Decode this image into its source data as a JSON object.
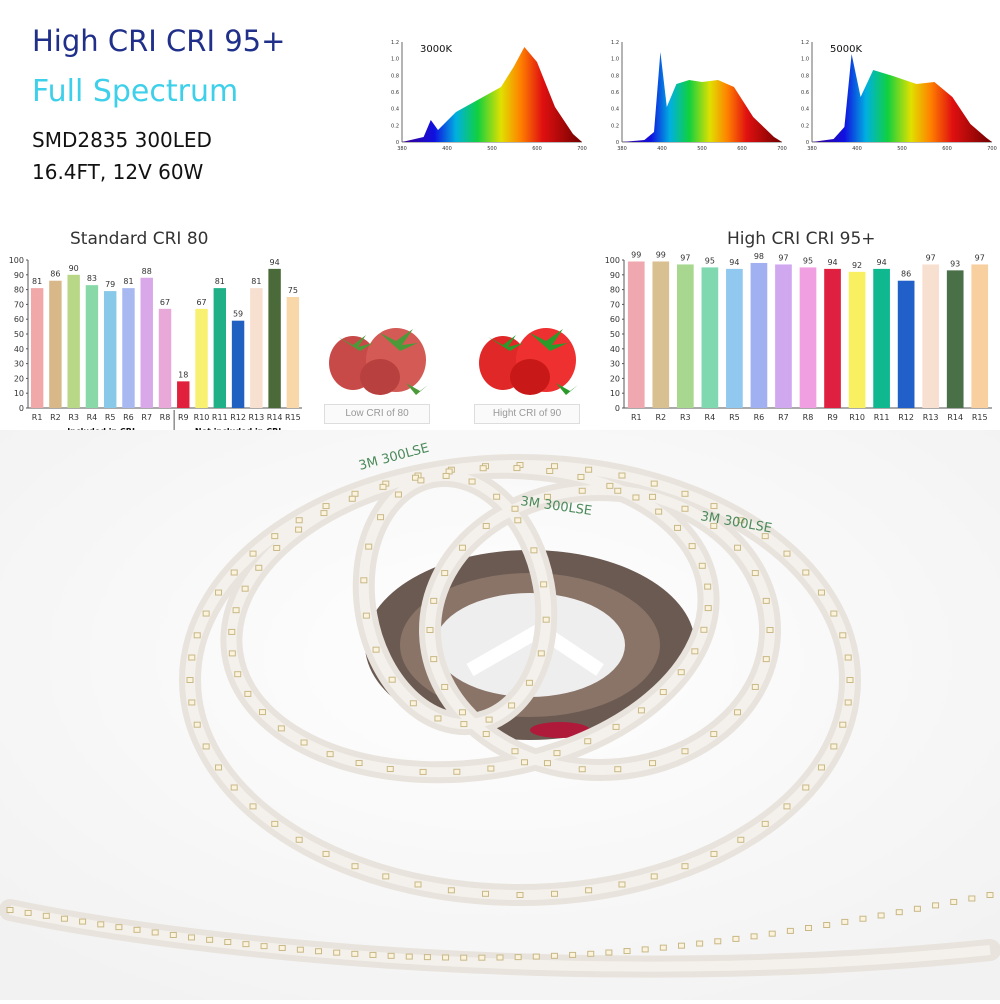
{
  "header": {
    "title": "High CRI CRI 95+",
    "subtitle": "Full Spectrum",
    "spec_line1": "SMD2835 300LED",
    "spec_line2": "16.4FT, 12V 60W"
  },
  "spectra": [
    {
      "label": "3000K",
      "peak": "red",
      "x_ticks": [
        "380",
        "400",
        "500",
        "600",
        "700"
      ],
      "y_ticks": [
        "0",
        "0.2",
        "0.4",
        "0.6",
        "0.8",
        "1.0",
        "1.2"
      ]
    },
    {
      "label": "",
      "peak": "blue",
      "x_ticks": [
        "380",
        "400",
        "500",
        "600",
        "700"
      ],
      "y_ticks": [
        "0",
        "0.2",
        "0.4",
        "0.6",
        "0.8",
        "1.0",
        "1.2"
      ]
    },
    {
      "label": "5000K",
      "peak": "blue",
      "x_ticks": [
        "380",
        "400",
        "500",
        "600",
        "700"
      ],
      "y_ticks": [
        "0",
        "0.2",
        "0.4",
        "0.6",
        "0.8",
        "1.0",
        "1.2"
      ]
    }
  ],
  "chart_data": [
    {
      "type": "bar",
      "title": "Standard CRI 80",
      "categories": [
        "R1",
        "R2",
        "R3",
        "R4",
        "R5",
        "R6",
        "R7",
        "R8",
        "R9",
        "R10",
        "R11",
        "R12",
        "R13",
        "R14",
        "R15"
      ],
      "values": [
        81,
        86,
        90,
        83,
        79,
        81,
        88,
        67,
        18,
        67,
        81,
        59,
        81,
        94,
        75
      ],
      "colors": [
        "#f0a8a8",
        "#d8b888",
        "#b8d888",
        "#88d8a8",
        "#88c8e8",
        "#a8b8f0",
        "#d8a8e8",
        "#e8a8d8",
        "#e0203c",
        "#f8f070",
        "#20b088",
        "#2060c0",
        "#f8e0d0",
        "#4a6a3a",
        "#f8d8a8"
      ],
      "ylim": [
        0,
        100
      ],
      "y_ticks": [
        0,
        10,
        20,
        30,
        40,
        50,
        60,
        70,
        80,
        90,
        100
      ],
      "group_labels": [
        "Included in CRI",
        "Not included in CRI"
      ]
    },
    {
      "type": "bar",
      "title": "High CRI CRI 95+",
      "categories": [
        "R1",
        "R2",
        "R3",
        "R4",
        "R5",
        "R6",
        "R7",
        "R8",
        "R9",
        "R10",
        "R11",
        "R12",
        "R13",
        "R14",
        "R15"
      ],
      "values": [
        99,
        99,
        97,
        95,
        94,
        98,
        97,
        95,
        94,
        92,
        94,
        86,
        97,
        93,
        97
      ],
      "colors": [
        "#f0a8b0",
        "#d8c090",
        "#a8d890",
        "#80d8b0",
        "#90c8f0",
        "#a0b0f0",
        "#d0a8f0",
        "#f0a0e0",
        "#e02040",
        "#f8f060",
        "#10b890",
        "#2060c8",
        "#f8e0d0",
        "#4a7048",
        "#f8d0a0"
      ],
      "ylim": [
        0,
        100
      ],
      "y_ticks": [
        0,
        10,
        20,
        30,
        40,
        50,
        60,
        70,
        80,
        90,
        100
      ]
    }
  ],
  "strawberry_captions": [
    "Low CRI of 80",
    "Hight CRI of 90"
  ],
  "tape_text": "3M 300LSE"
}
